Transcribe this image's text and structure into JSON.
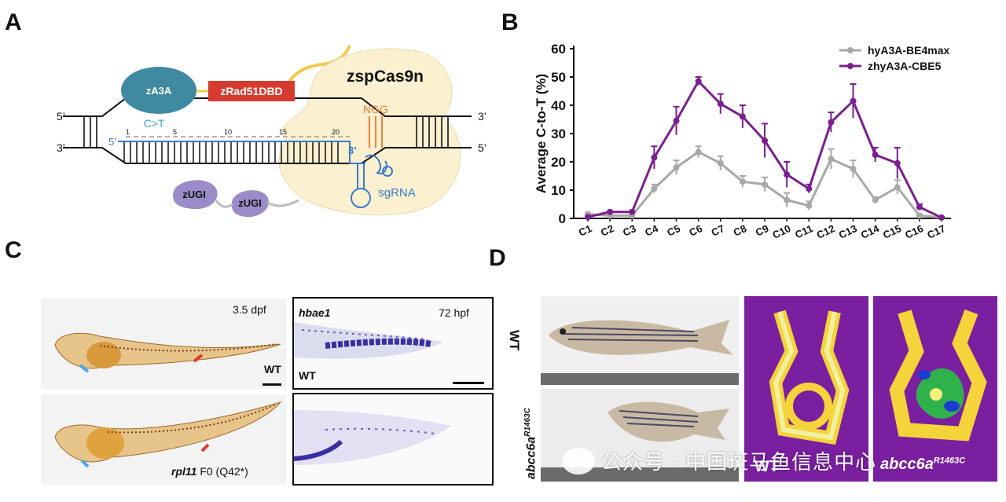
{
  "panels": {
    "a": "A",
    "b": "B",
    "c": "C",
    "d": "D"
  },
  "panel_a": {
    "za3a": "zA3A",
    "zrad": "zRad51DBD",
    "cas9": "zspCas9n",
    "ctot": "C>T",
    "ngg": "NGG",
    "sgrna": "sgRNA",
    "zugi1": "zUGI",
    "zugi2": "zUGI",
    "left_top_5": "5’",
    "left_bot_3": "3’",
    "right_top_3": "3’",
    "right_bot_5": "5’",
    "guide_5": "5’",
    "guide_3": "3’",
    "pos_1": "1",
    "pos_5": "5",
    "pos_10": "10",
    "pos_15": "15",
    "pos_20": "20"
  },
  "chart_data": {
    "type": "line",
    "title": "",
    "xlabel": "",
    "ylabel": "Average C-to-T (%)",
    "categories": [
      "C1",
      "C2",
      "C3",
      "C4",
      "C5",
      "C6",
      "C7",
      "C8",
      "C9",
      "C10",
      "C11",
      "C12",
      "C13",
      "C14",
      "C15",
      "C16",
      "C17"
    ],
    "ylim": [
      0,
      60
    ],
    "yticks": [
      "0",
      "10",
      "20",
      "30",
      "40",
      "50",
      "60"
    ],
    "legend_position": "top-right",
    "series": [
      {
        "name": "hyA3A-BE4max",
        "color": "#a8a8a8",
        "values": [
          1.5,
          1.0,
          1.0,
          10.5,
          18,
          23.5,
          19.5,
          13,
          12,
          6.5,
          4.5,
          21,
          17.5,
          6.5,
          11,
          1.0,
          0.3
        ],
        "errors": [
          0.5,
          0.3,
          0.3,
          1.5,
          2.5,
          2.0,
          2.5,
          2.0,
          2.5,
          2.5,
          1.5,
          3.5,
          3.0,
          1.0,
          2.5,
          0.5,
          0.2
        ]
      },
      {
        "name": "zhyA3A-CBE5",
        "color": "#7b1f8e",
        "values": [
          0.5,
          2.3,
          2.3,
          21.5,
          34.5,
          48.5,
          40.5,
          36,
          27.5,
          15.5,
          10.5,
          34,
          41.5,
          22.5,
          19.5,
          4.0,
          0.3
        ],
        "errors": [
          0.3,
          0.3,
          0.3,
          4.0,
          5.0,
          1.5,
          3.5,
          4.0,
          6.0,
          4.5,
          1.5,
          3.5,
          6.0,
          2.5,
          5.5,
          1.0,
          0.2
        ]
      }
    ]
  },
  "panel_c": {
    "dpf": "3.5 dpf",
    "wt": "WT",
    "mutant_gene": "rpl11",
    "mutant_rest": " F0 (Q42*)",
    "hbae1": "hbae1",
    "hpf": "72 hpf",
    "wt2": "WT"
  },
  "panel_d": {
    "wt_side": "WT",
    "mut_gene": "abcc6a",
    "mut_sup": "R1463C",
    "wt_bottom": "WT",
    "mut_bottom_gene": "abcc6a",
    "mut_bottom_sup": "R1463C"
  },
  "watermark": "公众号 · 中国斑马鱼信息中心"
}
